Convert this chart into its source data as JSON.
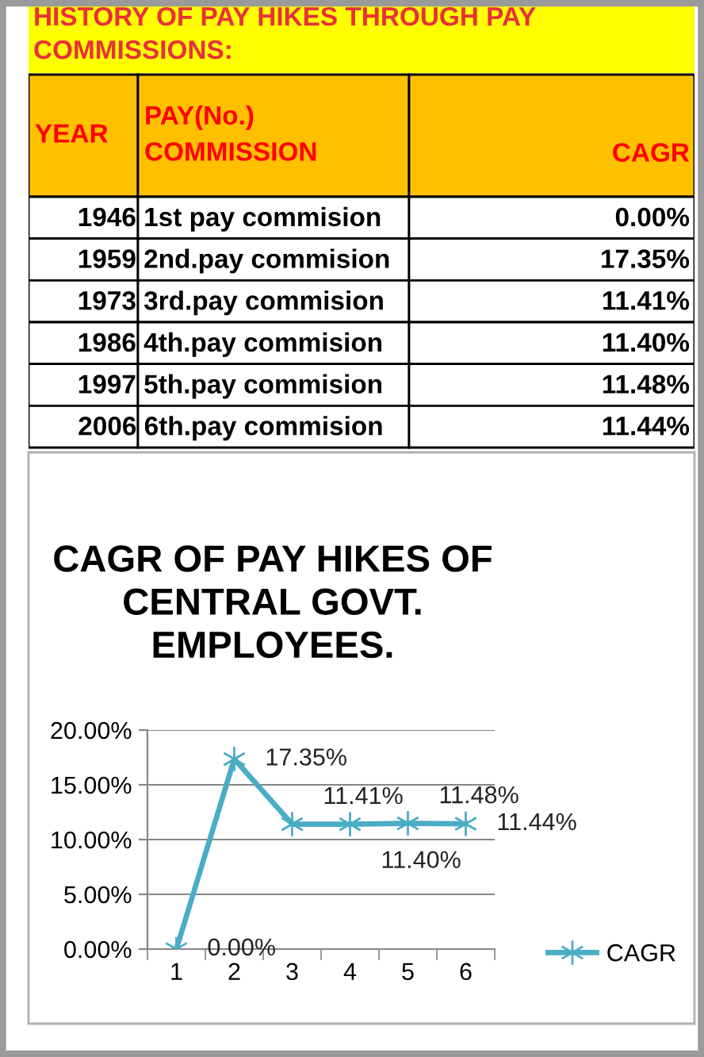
{
  "chart_data": [
    {
      "type": "other",
      "title": "HISTORY OF PAY HIKES THROUGH PAY COMMISSIONS:",
      "annotations": [
        "YEAR",
        "PAY(No.)\nCOMMISSION",
        "CAGR",
        "1946",
        "1st pay commision",
        "0.00%",
        "1959",
        "2nd.pay commision",
        "17.35%",
        "1973",
        "3rd.pay commision",
        "11.41%",
        "1986",
        "4th.pay commision",
        "11.40%",
        "1997",
        "5th.pay commision",
        "11.48%",
        "2006",
        "6th.pay commision",
        "11.44%"
      ]
    },
    {
      "type": "line",
      "title": "CAGR OF PAY HIKES OF CENTRAL GOVT. EMPLOYEES.",
      "categories": [
        "1",
        "2",
        "3",
        "4",
        "5",
        "6"
      ],
      "series": [
        {
          "name": "CAGR",
          "color": "#4bacc6",
          "values": [
            0,
            17.35,
            11.41,
            11.4,
            11.48,
            11.44
          ],
          "value_labels": [
            "0.00%",
            "17.35%",
            "11.41%",
            "11.40%",
            "11.48%",
            "11.44%"
          ]
        }
      ],
      "ylim": [
        0,
        20
      ],
      "yticks": [
        {
          "value": 0,
          "label": "0.00%"
        },
        {
          "value": 5,
          "label": "5.00%"
        },
        {
          "value": 10,
          "label": "10.00%"
        },
        {
          "value": 15,
          "label": "15.00%"
        },
        {
          "value": 20,
          "label": "20.00%"
        }
      ],
      "grid": "y",
      "legend": "right",
      "marker": "cross",
      "line_style": "solid"
    }
  ]
}
